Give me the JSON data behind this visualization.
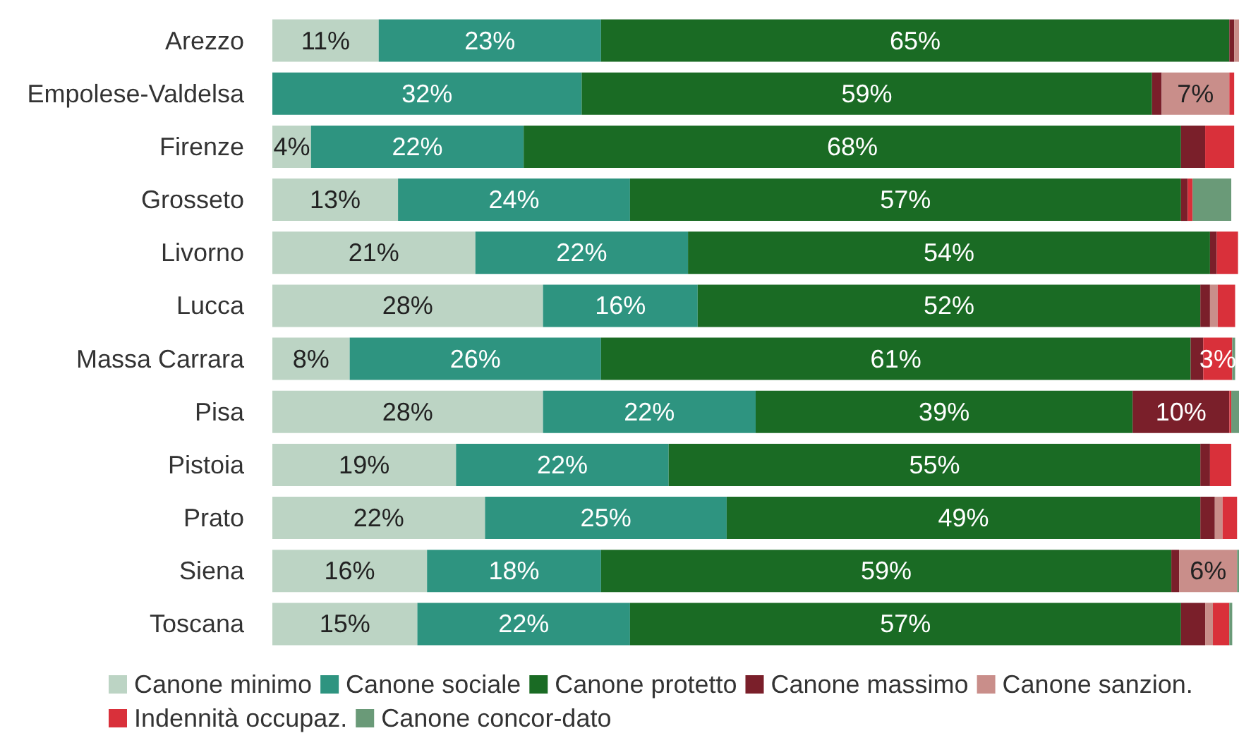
{
  "chart_data": {
    "type": "bar",
    "orientation": "horizontal",
    "stacked": true,
    "xlim": [
      0,
      100
    ],
    "tick_labels": "y",
    "grid": false,
    "legend": "bottom",
    "categories": [
      "Arezzo",
      "Empolese-Valdelsa",
      "Firenze",
      "Grosseto",
      "Livorno",
      "Lucca",
      "Massa Carrara",
      "Pisa",
      "Pistoia",
      "Prato",
      "Siena",
      "Toscana"
    ],
    "series": [
      {
        "name": "Canone minimo",
        "color": "#bcd4c4",
        "values": [
          11,
          0,
          4,
          13,
          21,
          28,
          8,
          28,
          19,
          22,
          16,
          15
        ],
        "value_labels": [
          "11%",
          null,
          "4%",
          "13%",
          "21%",
          "28%",
          "8%",
          "28%",
          "19%",
          "22%",
          "16%",
          "15%"
        ]
      },
      {
        "name": "Canone sociale",
        "color": "#2e9480",
        "values": [
          23,
          32,
          22,
          24,
          22,
          16,
          26,
          22,
          22,
          25,
          18,
          22
        ],
        "value_labels": [
          "23%",
          "32%",
          "22%",
          "24%",
          "22%",
          "16%",
          "26%",
          "22%",
          "22%",
          "25%",
          "18%",
          "22%"
        ]
      },
      {
        "name": "Canone protetto",
        "color": "#1a6b24",
        "values": [
          65,
          59,
          68,
          57,
          54,
          52,
          61,
          39,
          55,
          49,
          59,
          57
        ],
        "value_labels": [
          "65%",
          "59%",
          "68%",
          "57%",
          "54%",
          "52%",
          "61%",
          "39%",
          "55%",
          "49%",
          "59%",
          "57%"
        ]
      },
      {
        "name": "Canone massimo",
        "color": "#7a1f2a",
        "values": [
          0.5,
          1,
          2.5,
          0.7,
          0.7,
          1,
          1.3,
          10,
          1,
          1.5,
          0.8,
          2.5
        ],
        "value_labels": [
          null,
          null,
          null,
          null,
          null,
          null,
          null,
          "10%",
          null,
          null,
          null,
          null
        ]
      },
      {
        "name": "Canone sanzion.",
        "color": "#c98e8a",
        "values": [
          0.5,
          7,
          0,
          0,
          0,
          0.8,
          0,
          0,
          0,
          0.8,
          6,
          0.8
        ],
        "value_labels": [
          null,
          "7%",
          null,
          null,
          null,
          null,
          null,
          null,
          null,
          null,
          "6%",
          null
        ]
      },
      {
        "name": "Indennità occupaz.",
        "color": "#d9303a",
        "values": [
          0,
          0.5,
          3,
          0.5,
          2.2,
          1.8,
          3,
          0.2,
          2.2,
          1.5,
          0,
          1.7
        ],
        "value_labels": [
          null,
          null,
          null,
          null,
          null,
          null,
          "3%",
          null,
          null,
          null,
          null,
          null
        ]
      },
      {
        "name": "Canone concor-dato",
        "color": "#6a9a78",
        "values": [
          0,
          0,
          0,
          4,
          0,
          0,
          0.3,
          0.8,
          0,
          0,
          0.2,
          0.3
        ],
        "value_labels": [
          null,
          null,
          null,
          null,
          null,
          null,
          null,
          null,
          null,
          null,
          null,
          null
        ]
      }
    ]
  }
}
